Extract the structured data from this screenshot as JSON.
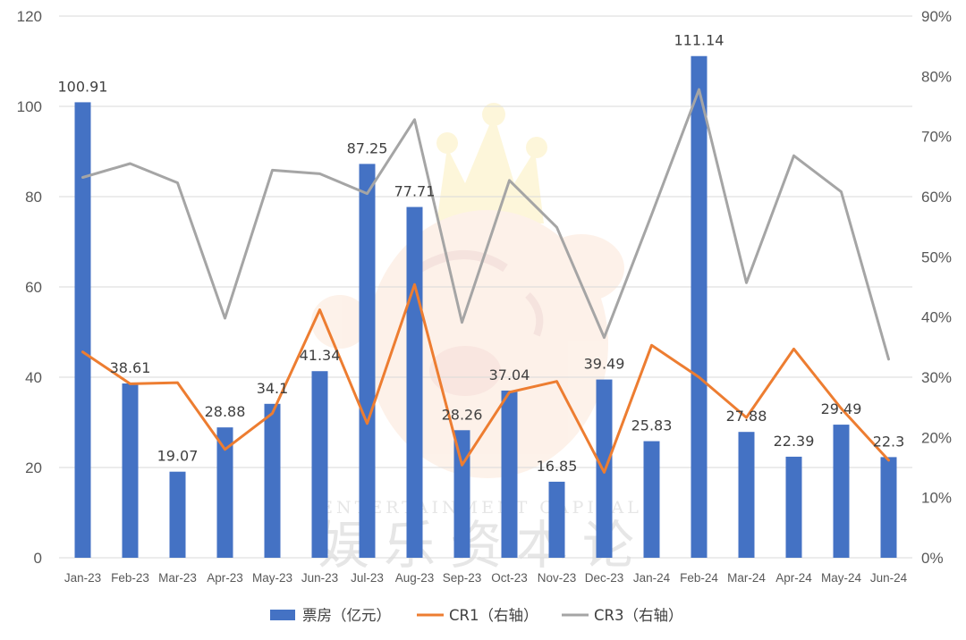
{
  "chart_data": {
    "type": "bar",
    "categories": [
      "Jan-23",
      "Feb-23",
      "Mar-23",
      "Apr-23",
      "May-23",
      "Jun-23",
      "Jul-23",
      "Aug-23",
      "Sep-23",
      "Oct-23",
      "Nov-23",
      "Dec-23",
      "Jan-24",
      "Feb-24",
      "Mar-24",
      "Apr-24",
      "May-24",
      "Jun-24"
    ],
    "bar_series": {
      "name": "票房（亿元）",
      "values": [
        100.91,
        38.61,
        19.07,
        28.88,
        34.1,
        41.34,
        87.25,
        77.71,
        28.26,
        37.04,
        16.85,
        39.49,
        25.83,
        111.14,
        27.88,
        22.39,
        29.49,
        22.3
      ],
      "labels": [
        "100.91",
        "38.61",
        "19.07",
        "28.88",
        "34.1",
        "41.34",
        "87.25",
        "77.71",
        "28.26",
        "37.04",
        "16.85",
        "39.49",
        "25.83",
        "111.14",
        "27.88",
        "22.39",
        "29.49",
        "22.3"
      ],
      "color": "#4472c4"
    },
    "line_series": [
      {
        "name": "CR1（右轴）",
        "values": [
          34.2,
          28.9,
          29.1,
          18.0,
          24.0,
          41.2,
          22.3,
          45.4,
          15.4,
          27.5,
          29.3,
          14.2,
          35.3,
          30.0,
          23.3,
          34.7,
          24.8,
          16.2
        ],
        "color": "#ed7d31"
      },
      {
        "name": "CR3（右轴）",
        "values": [
          63.2,
          65.5,
          62.3,
          39.8,
          64.4,
          63.8,
          60.5,
          72.8,
          39.1,
          62.7,
          54.9,
          36.6,
          57.0,
          77.8,
          45.7,
          66.8,
          60.8,
          33.0
        ],
        "color": "#a5a5a5"
      }
    ],
    "y_left": {
      "min": 0,
      "max": 120,
      "step": 20,
      "ticks": [
        "0",
        "20",
        "40",
        "60",
        "80",
        "100",
        "120"
      ]
    },
    "y_right": {
      "min": 0,
      "max": 90,
      "step": 10,
      "ticks": [
        "0%",
        "10%",
        "20%",
        "30%",
        "40%",
        "50%",
        "60%",
        "70%",
        "80%",
        "90%"
      ]
    },
    "grid": true,
    "legend_position": "bottom",
    "watermark": {
      "text": "ENTERTAINMENT CAPITAL",
      "chinese": "娱乐资本论"
    }
  }
}
